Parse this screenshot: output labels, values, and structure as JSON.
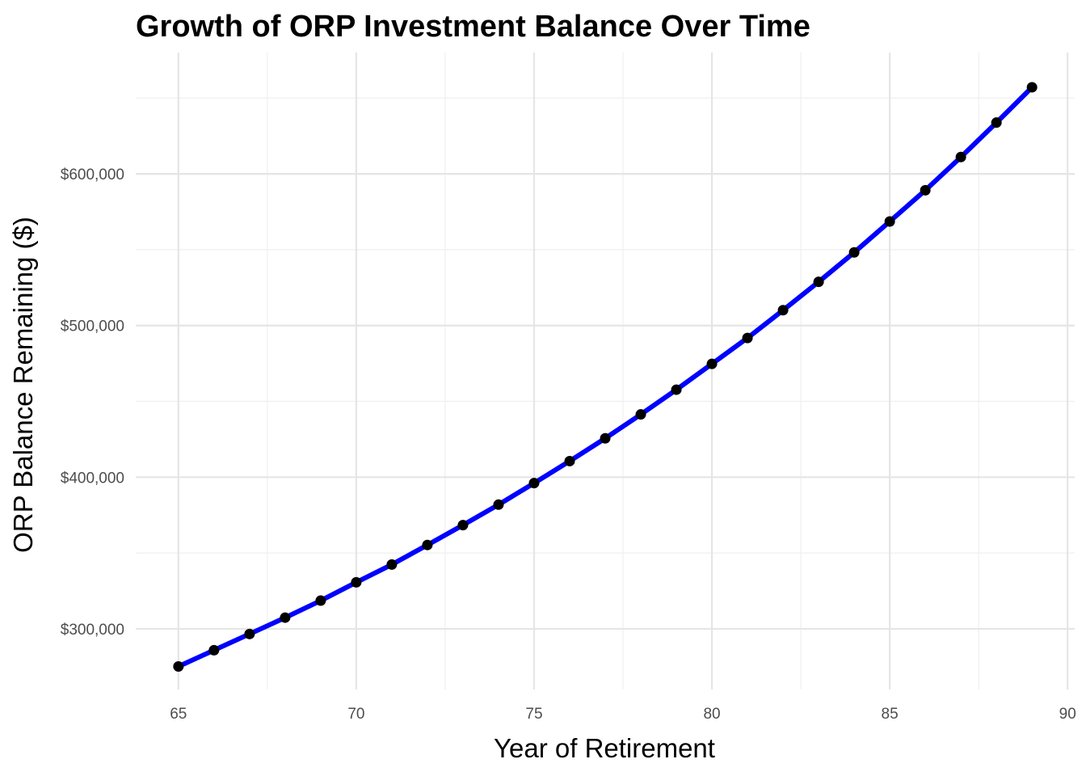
{
  "chart_data": {
    "type": "line",
    "title": "Growth of ORP Investment Balance Over Time",
    "xlabel": "Year of Retirement",
    "ylabel": "ORP Balance Remaining ($)",
    "xlim": [
      63.8,
      90.2
    ],
    "ylim": [
      260000,
      680000
    ],
    "x_ticks": [
      65,
      70,
      75,
      80,
      85,
      90
    ],
    "x_tick_labels": [
      "65",
      "70",
      "75",
      "80",
      "85",
      "90"
    ],
    "y_ticks": [
      300000,
      400000,
      500000,
      600000
    ],
    "y_tick_labels": [
      "$300,000",
      "$400,000",
      "$500,000",
      "$600,000"
    ],
    "grid": true,
    "legend": "none",
    "line_color": "#0000ff",
    "point_color": "#000000",
    "series": [
      {
        "x": [
          65,
          66,
          67,
          68,
          69,
          70,
          71,
          72,
          73,
          74,
          75,
          76,
          77,
          78,
          79,
          80,
          81,
          82,
          83,
          84,
          85,
          86,
          87,
          88,
          89
        ],
        "values": [
          275200,
          285900,
          296600,
          307400,
          318600,
          330700,
          342400,
          355300,
          368400,
          381900,
          396100,
          410600,
          425600,
          441400,
          457700,
          474700,
          491800,
          510100,
          528800,
          548200,
          568600,
          589200,
          611100,
          633800,
          657100
        ]
      }
    ]
  }
}
